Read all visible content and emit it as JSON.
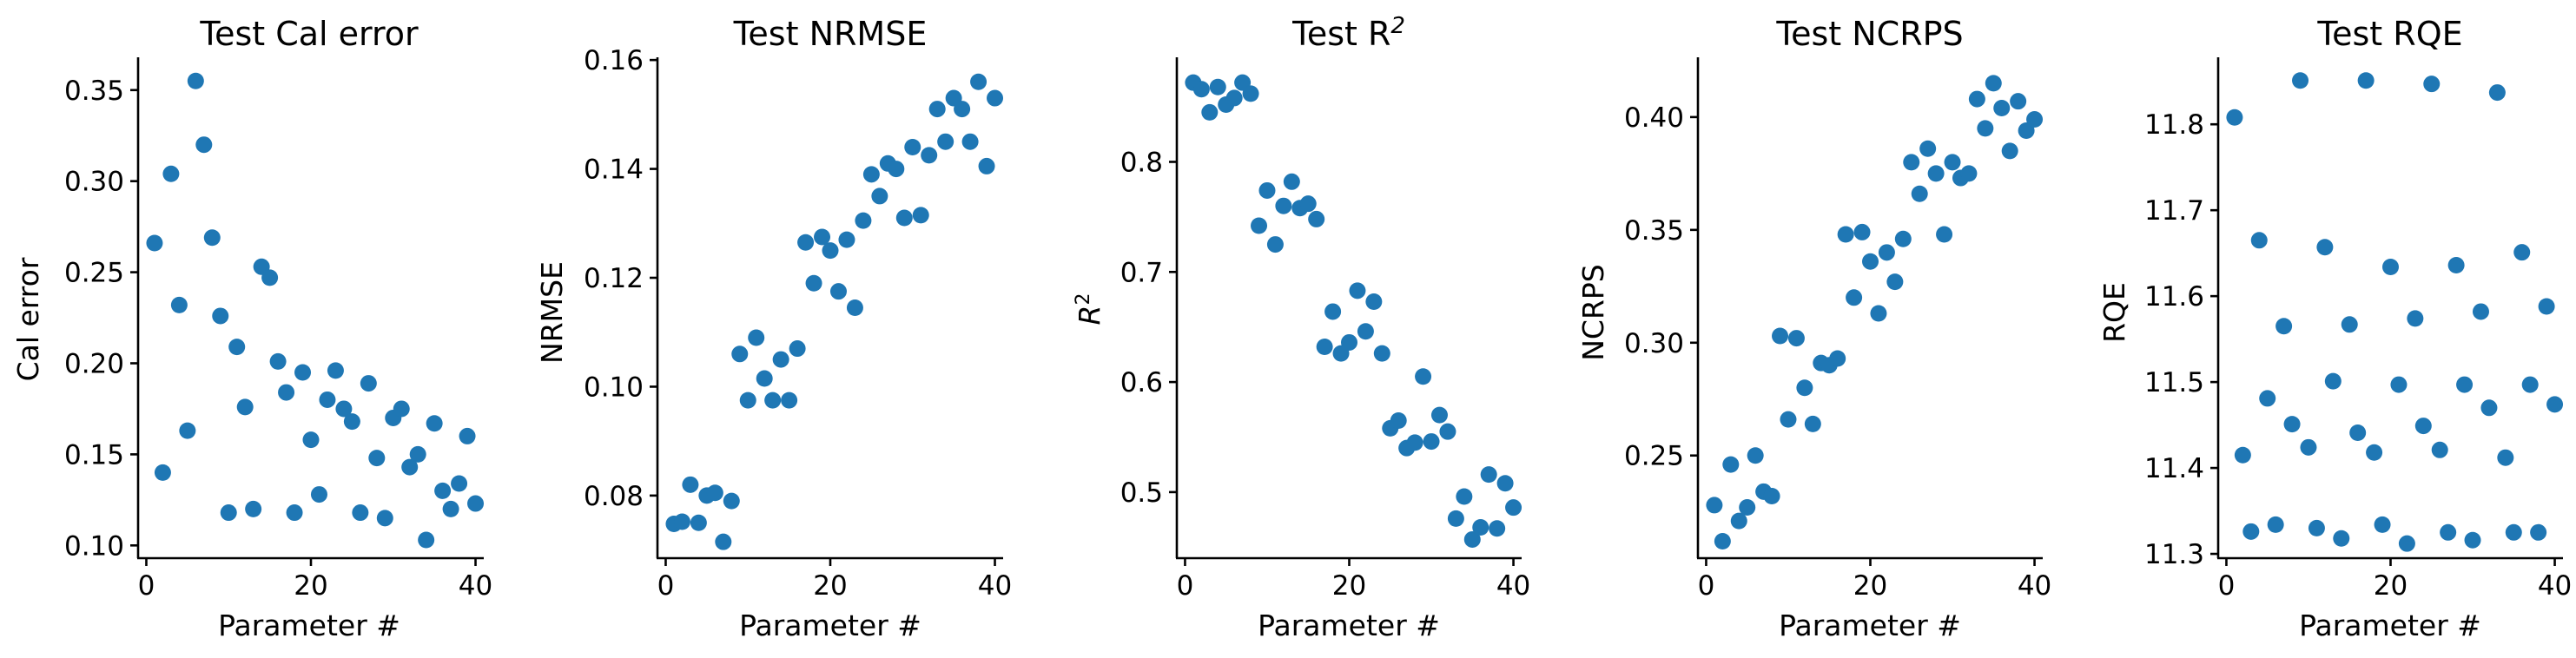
{
  "colors": {
    "marker": "#1f77b4",
    "axes": "#000000",
    "background": "#ffffff"
  },
  "chart_data": [
    {
      "type": "scatter",
      "title": "Test Cal error",
      "xlabel": "Parameter #",
      "ylabel": "Cal error",
      "xlim": [
        -1,
        41
      ],
      "ylim": [
        0.093,
        0.368
      ],
      "xticks": [
        0,
        20,
        40
      ],
      "yticks": [
        0.1,
        0.15,
        0.2,
        0.25,
        0.3,
        0.35
      ],
      "ytick_labels": [
        "0.10",
        "0.15",
        "0.20",
        "0.25",
        "0.30",
        "0.35"
      ],
      "grid": false,
      "points": [
        [
          1,
          0.266
        ],
        [
          2,
          0.14
        ],
        [
          3,
          0.304
        ],
        [
          4,
          0.232
        ],
        [
          5,
          0.163
        ],
        [
          6,
          0.355
        ],
        [
          7,
          0.32
        ],
        [
          8,
          0.269
        ],
        [
          9,
          0.226
        ],
        [
          10,
          0.118
        ],
        [
          11,
          0.209
        ],
        [
          12,
          0.176
        ],
        [
          13,
          0.12
        ],
        [
          14,
          0.253
        ],
        [
          15,
          0.247
        ],
        [
          16,
          0.201
        ],
        [
          17,
          0.184
        ],
        [
          18,
          0.118
        ],
        [
          19,
          0.195
        ],
        [
          20,
          0.158
        ],
        [
          21,
          0.128
        ],
        [
          22,
          0.18
        ],
        [
          23,
          0.196
        ],
        [
          24,
          0.175
        ],
        [
          25,
          0.168
        ],
        [
          26,
          0.118
        ],
        [
          27,
          0.189
        ],
        [
          28,
          0.148
        ],
        [
          29,
          0.115
        ],
        [
          30,
          0.17
        ],
        [
          31,
          0.175
        ],
        [
          32,
          0.143
        ],
        [
          33,
          0.15
        ],
        [
          34,
          0.103
        ],
        [
          35,
          0.167
        ],
        [
          36,
          0.13
        ],
        [
          37,
          0.12
        ],
        [
          38,
          0.134
        ],
        [
          39,
          0.16
        ],
        [
          40,
          0.123
        ]
      ]
    },
    {
      "type": "scatter",
      "title": "Test NRMSE",
      "xlabel": "Parameter #",
      "ylabel": "NRMSE",
      "xlim": [
        -1,
        41
      ],
      "ylim": [
        0.0685,
        0.1605
      ],
      "xticks": [
        0,
        20,
        40
      ],
      "yticks": [
        0.08,
        0.1,
        0.12,
        0.14,
        0.16
      ],
      "ytick_labels": [
        "0.08",
        "0.10",
        "0.12",
        "0.14",
        "0.16"
      ],
      "grid": false,
      "points": [
        [
          1,
          0.0748
        ],
        [
          2,
          0.0752
        ],
        [
          3,
          0.082
        ],
        [
          4,
          0.075
        ],
        [
          5,
          0.08
        ],
        [
          6,
          0.0805
        ],
        [
          7,
          0.0715
        ],
        [
          8,
          0.079
        ],
        [
          9,
          0.106
        ],
        [
          10,
          0.0975
        ],
        [
          11,
          0.109
        ],
        [
          12,
          0.1015
        ],
        [
          13,
          0.0975
        ],
        [
          14,
          0.105
        ],
        [
          15,
          0.0975
        ],
        [
          16,
          0.107
        ],
        [
          17,
          0.1265
        ],
        [
          18,
          0.119
        ],
        [
          19,
          0.1275
        ],
        [
          20,
          0.125
        ],
        [
          21,
          0.1175
        ],
        [
          22,
          0.127
        ],
        [
          23,
          0.1145
        ],
        [
          24,
          0.1305
        ],
        [
          25,
          0.139
        ],
        [
          26,
          0.135
        ],
        [
          27,
          0.141
        ],
        [
          28,
          0.14
        ],
        [
          29,
          0.131
        ],
        [
          30,
          0.144
        ],
        [
          31,
          0.1315
        ],
        [
          32,
          0.1425
        ],
        [
          33,
          0.151
        ],
        [
          34,
          0.145
        ],
        [
          35,
          0.153
        ],
        [
          36,
          0.151
        ],
        [
          37,
          0.145
        ],
        [
          38,
          0.156
        ],
        [
          39,
          0.1405
        ],
        [
          40,
          0.153
        ]
      ]
    },
    {
      "type": "scatter",
      "title": "Test R",
      "title_superscript": "2",
      "xlabel": "Parameter #",
      "ylabel": "R",
      "ylabel_superscript": "2",
      "xlim": [
        -1,
        41
      ],
      "ylim": [
        0.44,
        0.895
      ],
      "xticks": [
        0,
        20,
        40
      ],
      "yticks": [
        0.5,
        0.6,
        0.7,
        0.8
      ],
      "ytick_labels": [
        "0.5",
        "0.6",
        "0.7",
        "0.8"
      ],
      "grid": false,
      "points": [
        [
          1,
          0.872
        ],
        [
          2,
          0.866
        ],
        [
          3,
          0.845
        ],
        [
          4,
          0.868
        ],
        [
          5,
          0.852
        ],
        [
          6,
          0.858
        ],
        [
          7,
          0.872
        ],
        [
          8,
          0.862
        ],
        [
          9,
          0.742
        ],
        [
          10,
          0.774
        ],
        [
          11,
          0.725
        ],
        [
          12,
          0.76
        ],
        [
          13,
          0.782
        ],
        [
          14,
          0.758
        ],
        [
          15,
          0.762
        ],
        [
          16,
          0.748
        ],
        [
          17,
          0.632
        ],
        [
          18,
          0.664
        ],
        [
          19,
          0.626
        ],
        [
          20,
          0.636
        ],
        [
          21,
          0.683
        ],
        [
          22,
          0.646
        ],
        [
          23,
          0.673
        ],
        [
          24,
          0.626
        ],
        [
          25,
          0.558
        ],
        [
          26,
          0.565
        ],
        [
          27,
          0.54
        ],
        [
          28,
          0.545
        ],
        [
          29,
          0.605
        ],
        [
          30,
          0.546
        ],
        [
          31,
          0.57
        ],
        [
          32,
          0.555
        ],
        [
          33,
          0.476
        ],
        [
          34,
          0.496
        ],
        [
          35,
          0.457
        ],
        [
          36,
          0.468
        ],
        [
          37,
          0.516
        ],
        [
          38,
          0.467
        ],
        [
          39,
          0.508
        ],
        [
          40,
          0.486
        ]
      ]
    },
    {
      "type": "scatter",
      "title": "Test NCRPS",
      "xlabel": "Parameter #",
      "ylabel": "NCRPS",
      "xlim": [
        -1,
        41
      ],
      "ylim": [
        0.2045,
        0.4265
      ],
      "xticks": [
        0,
        20,
        40
      ],
      "yticks": [
        0.25,
        0.3,
        0.35,
        0.4
      ],
      "ytick_labels": [
        "0.25",
        "0.30",
        "0.35",
        "0.40"
      ],
      "grid": false,
      "points": [
        [
          1,
          0.228
        ],
        [
          2,
          0.212
        ],
        [
          3,
          0.246
        ],
        [
          4,
          0.221
        ],
        [
          5,
          0.227
        ],
        [
          6,
          0.25
        ],
        [
          7,
          0.234
        ],
        [
          8,
          0.232
        ],
        [
          9,
          0.303
        ],
        [
          10,
          0.266
        ],
        [
          11,
          0.302
        ],
        [
          12,
          0.28
        ],
        [
          13,
          0.264
        ],
        [
          14,
          0.291
        ],
        [
          15,
          0.29
        ],
        [
          16,
          0.293
        ],
        [
          17,
          0.348
        ],
        [
          18,
          0.32
        ],
        [
          19,
          0.349
        ],
        [
          20,
          0.336
        ],
        [
          21,
          0.313
        ],
        [
          22,
          0.34
        ],
        [
          23,
          0.327
        ],
        [
          24,
          0.346
        ],
        [
          25,
          0.38
        ],
        [
          26,
          0.366
        ],
        [
          27,
          0.386
        ],
        [
          28,
          0.375
        ],
        [
          29,
          0.348
        ],
        [
          30,
          0.38
        ],
        [
          31,
          0.373
        ],
        [
          32,
          0.375
        ],
        [
          33,
          0.408
        ],
        [
          34,
          0.395
        ],
        [
          35,
          0.415
        ],
        [
          36,
          0.404
        ],
        [
          37,
          0.385
        ],
        [
          38,
          0.407
        ],
        [
          39,
          0.394
        ],
        [
          40,
          0.399
        ]
      ]
    },
    {
      "type": "scatter",
      "title": "Test RQE",
      "xlabel": "Parameter #",
      "ylabel": "RQE",
      "xlim": [
        -1,
        41
      ],
      "ylim": [
        11.295,
        11.878
      ],
      "xticks": [
        0,
        20,
        40
      ],
      "yticks": [
        11.3,
        11.4,
        11.5,
        11.6,
        11.7,
        11.8
      ],
      "ytick_labels": [
        "11.3",
        "11.4",
        "11.5",
        "11.6",
        "11.7",
        "11.8"
      ],
      "grid": false,
      "points": [
        [
          1,
          11.808
        ],
        [
          2,
          11.415
        ],
        [
          3,
          11.326
        ],
        [
          4,
          11.665
        ],
        [
          5,
          11.481
        ],
        [
          6,
          11.334
        ],
        [
          7,
          11.565
        ],
        [
          8,
          11.451
        ],
        [
          9,
          11.851
        ],
        [
          10,
          11.424
        ],
        [
          11,
          11.33
        ],
        [
          12,
          11.657
        ],
        [
          13,
          11.501
        ],
        [
          14,
          11.318
        ],
        [
          15,
          11.567
        ],
        [
          16,
          11.441
        ],
        [
          17,
          11.851
        ],
        [
          18,
          11.418
        ],
        [
          19,
          11.334
        ],
        [
          20,
          11.634
        ],
        [
          21,
          11.497
        ],
        [
          22,
          11.312
        ],
        [
          23,
          11.574
        ],
        [
          24,
          11.449
        ],
        [
          25,
          11.847
        ],
        [
          26,
          11.421
        ],
        [
          27,
          11.325
        ],
        [
          28,
          11.636
        ],
        [
          29,
          11.497
        ],
        [
          30,
          11.316
        ],
        [
          31,
          11.582
        ],
        [
          32,
          11.47
        ],
        [
          33,
          11.837
        ],
        [
          34,
          11.412
        ],
        [
          35,
          11.325
        ],
        [
          36,
          11.651
        ],
        [
          37,
          11.497
        ],
        [
          38,
          11.325
        ],
        [
          39,
          11.588
        ],
        [
          40,
          11.474
        ]
      ]
    }
  ]
}
